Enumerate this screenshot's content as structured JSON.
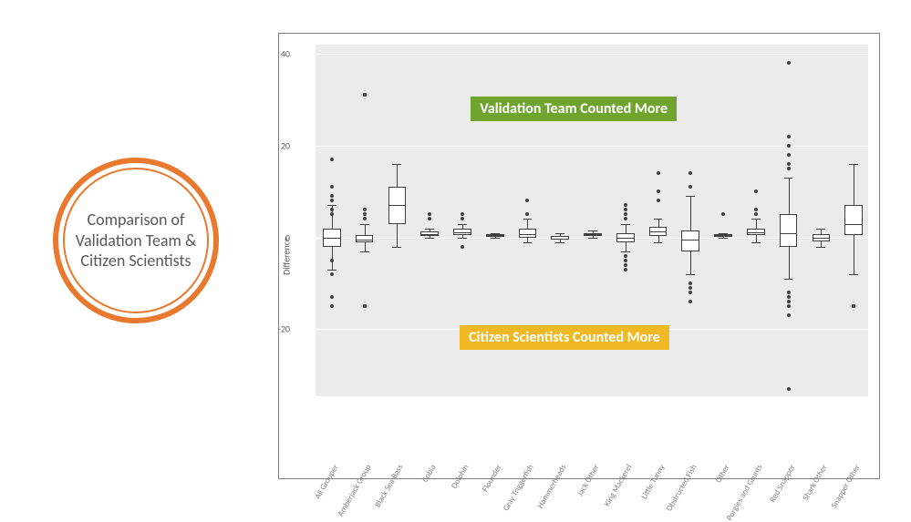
{
  "badge": {
    "text": "Comparison of Validation Team & Citizen Scientists",
    "ring_color": "#e8792e",
    "text_color": "#595959",
    "font_size": 18
  },
  "chart": {
    "type": "boxplot",
    "y_axis_label": "Difference",
    "ylim_data": [
      -35,
      42
    ],
    "yticks": [
      -20,
      0,
      20,
      40
    ],
    "background_color": "#ebebeb",
    "gridline_color": "#ffffff",
    "box_fill": "#ffffff",
    "box_stroke": "#404040",
    "outlier_color": "#404040",
    "axis_text_color": "#595959",
    "x_label_color": "#808080",
    "frame_border": "#808080",
    "categories": [
      "All Grouper",
      "Amberjack Group",
      "Black Sea Bass",
      "Cobia",
      "Dolphin",
      "Flounder",
      "Gray Triggerfish",
      "Hammerheads",
      "Jack Other",
      "King Mackerel",
      "Little Tunny",
      "Obstructed Fish",
      "Other",
      "Porgies and Grunts",
      "Red Snapper",
      "Shark Other",
      "Snapper Other"
    ],
    "boxes": [
      {
        "q1": -2.0,
        "median": 0,
        "q3": 2.0,
        "lo": -7,
        "hi": 7,
        "outliers": [
          -15,
          -13,
          -8,
          -5,
          5,
          6,
          8,
          9,
          11,
          17
        ]
      },
      {
        "q1": -1.0,
        "median": -0.5,
        "q3": 0.5,
        "lo": -3,
        "hi": 3,
        "outliers": [
          -15,
          4,
          5,
          6,
          31
        ]
      },
      {
        "q1": 3.0,
        "median": 7.0,
        "q3": 11.0,
        "lo": -2,
        "hi": 16,
        "outliers": []
      },
      {
        "q1": 0.3,
        "median": 0.8,
        "q3": 1.4,
        "lo": 0,
        "hi": 2,
        "outliers": [
          4,
          5
        ]
      },
      {
        "q1": 0.5,
        "median": 1.2,
        "q3": 2.0,
        "lo": 0,
        "hi": 3,
        "outliers": [
          -2,
          4,
          5
        ]
      },
      {
        "q1": 0.2,
        "median": 0.5,
        "q3": 0.8,
        "lo": 0,
        "hi": 1,
        "outliers": []
      },
      {
        "q1": 0.0,
        "median": 0.8,
        "q3": 2.0,
        "lo": -1,
        "hi": 4,
        "outliers": [
          5,
          8
        ]
      },
      {
        "q1": -0.5,
        "median": -0.2,
        "q3": 0.3,
        "lo": -1,
        "hi": 1,
        "outliers": []
      },
      {
        "q1": 0.3,
        "median": 0.7,
        "q3": 1.0,
        "lo": 0,
        "hi": 1.5,
        "outliers": []
      },
      {
        "q1": -1.0,
        "median": 0,
        "q3": 1.0,
        "lo": -3,
        "hi": 3,
        "outliers": [
          -7,
          -6,
          -5,
          -4,
          4,
          5,
          6,
          7
        ]
      },
      {
        "q1": 0.3,
        "median": 1.3,
        "q3": 2.3,
        "lo": -1,
        "hi": 4,
        "outliers": [
          8,
          10,
          14
        ]
      },
      {
        "q1": -3.0,
        "median": -0.5,
        "q3": 1.5,
        "lo": -8,
        "hi": 9,
        "outliers": [
          -14,
          -12,
          -11,
          -10,
          11,
          14
        ]
      },
      {
        "q1": 0.2,
        "median": 0.5,
        "q3": 0.8,
        "lo": 0,
        "hi": 1,
        "outliers": [
          5
        ]
      },
      {
        "q1": 0.5,
        "median": 1.2,
        "q3": 2.0,
        "lo": -1,
        "hi": 4,
        "outliers": [
          5,
          6,
          10
        ]
      },
      {
        "q1": -2.0,
        "median": 1.0,
        "q3": 5.0,
        "lo": -9,
        "hi": 13,
        "outliers": [
          -33,
          -17,
          -15,
          -14,
          -13,
          -12,
          15,
          16,
          18,
          20,
          22,
          38
        ]
      },
      {
        "q1": -0.8,
        "median": 0,
        "q3": 0.8,
        "lo": -2,
        "hi": 2,
        "outliers": []
      },
      {
        "q1": 0.5,
        "median": 3.0,
        "q3": 7.0,
        "lo": -8,
        "hi": 16,
        "outliers": [
          -15
        ]
      }
    ],
    "annotations": {
      "top": {
        "text": "Validation Team Counted More",
        "bg": "#6fa52e",
        "color": "#ffffff",
        "y_value": 28
      },
      "bottom": {
        "text": "Citizen Scientists Counted More",
        "bg": "#f0b823",
        "color": "#ffffff",
        "y_value": -22
      }
    }
  }
}
